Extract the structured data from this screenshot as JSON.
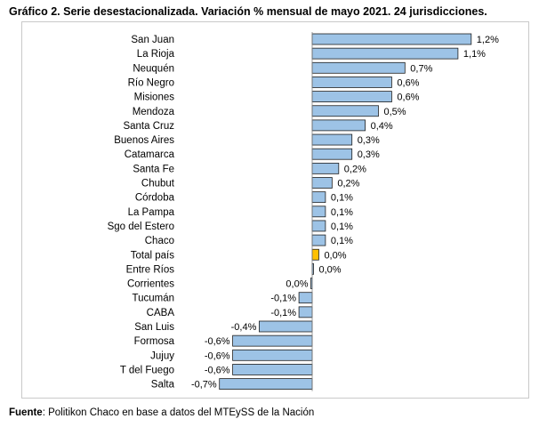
{
  "title": "Gráfico 2. Serie desestacionalizada. Variación % mensual de mayo 2021. 24 jurisdicciones.",
  "source": {
    "label": "Fuente",
    "text": ": Politikon Chaco en base a datos del MTEySS de la Nación"
  },
  "colors": {
    "bar": "#9dc3e6",
    "highlight": "#ffc000",
    "stroke": "#1f1f1f",
    "frame": "#c9c9c9"
  },
  "chart_data": {
    "type": "bar",
    "orientation": "horizontal",
    "title": "",
    "xlabel": "",
    "ylabel": "",
    "grid": false,
    "legend": "none",
    "xlim": [
      -0.7,
      1.2
    ],
    "categories": [
      "San Juan",
      "La Rioja",
      "Neuquén",
      "Río Negro",
      "Misiones",
      "Mendoza",
      "Santa Cruz",
      "Buenos Aires",
      "Catamarca",
      "Santa Fe",
      "Chubut",
      "Córdoba",
      "La Pampa",
      "Sgo del Estero",
      "Chaco",
      "Total país",
      "Entre Ríos",
      "Corrientes",
      "Tucumán",
      "CABA",
      "San Luis",
      "Formosa",
      "Jujuy",
      "T del Fuego",
      "Salta"
    ],
    "values": [
      1.2,
      1.1,
      0.7,
      0.6,
      0.6,
      0.5,
      0.4,
      0.3,
      0.3,
      0.2,
      0.15,
      0.1,
      0.1,
      0.1,
      0.1,
      0.05,
      0.01,
      -0.01,
      -0.1,
      -0.1,
      -0.4,
      -0.6,
      -0.6,
      -0.6,
      -0.7
    ],
    "labels": [
      "1,2%",
      "1,1%",
      "0,7%",
      "0,6%",
      "0,6%",
      "0,5%",
      "0,4%",
      "0,3%",
      "0,3%",
      "0,2%",
      "0,2%",
      "0,1%",
      "0,1%",
      "0,1%",
      "0,1%",
      "0,0%",
      "0,0%",
      "0,0%",
      "-0,1%",
      "-0,1%",
      "-0,4%",
      "-0,6%",
      "-0,6%",
      "-0,6%",
      "-0,7%"
    ],
    "highlight": "Total país"
  }
}
